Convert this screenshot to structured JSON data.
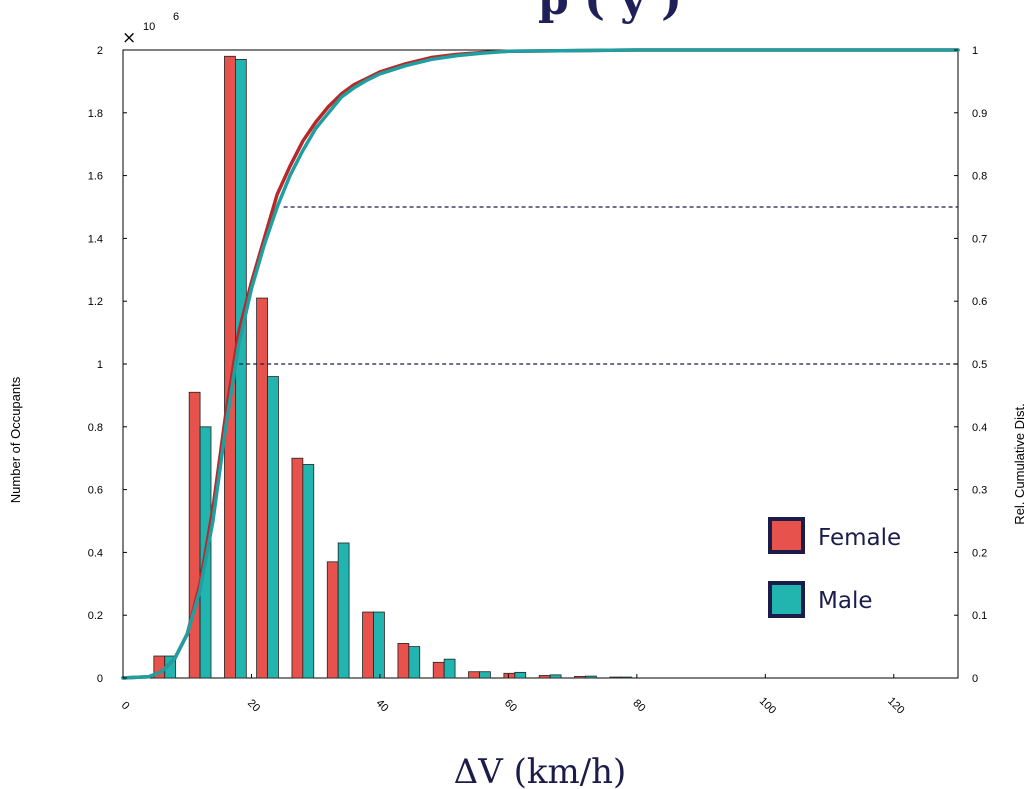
{
  "chart_data": {
    "type": "bar",
    "title_fragment": "p     (        y          )",
    "xlabel": "ΔV (km/h)",
    "ylabel_left": "Number of Occupants",
    "ylabel_right": "Rel. Cumulative Dist.",
    "y_exponent_label": "10",
    "y_exponent_power": "6",
    "x_ticks": [
      "0",
      "20",
      "40",
      "60",
      "80",
      "100",
      "120"
    ],
    "x_tick_values": [
      0,
      20,
      40,
      60,
      80,
      100,
      120
    ],
    "y_left_ticks": [
      "0",
      "0.2",
      "0.4",
      "0.6",
      "0.8",
      "1",
      "1.2",
      "1.4",
      "1.6",
      "1.8",
      "2"
    ],
    "y_left_tick_values": [
      0,
      0.2,
      0.4,
      0.6,
      0.8,
      1,
      1.2,
      1.4,
      1.6,
      1.8,
      2
    ],
    "y_right_ticks": [
      "0",
      "0.1",
      "0.2",
      "0.3",
      "0.4",
      "0.5",
      "0.6",
      "0.7",
      "0.8",
      "0.9",
      "1"
    ],
    "y_right_tick_values": [
      0,
      0.1,
      0.2,
      0.3,
      0.4,
      0.5,
      0.6,
      0.7,
      0.8,
      0.9,
      1
    ],
    "xlim": [
      0,
      130
    ],
    "ylim_left": [
      0,
      2
    ],
    "ylim_right": [
      0,
      1
    ],
    "bin_centers": [
      6.5,
      12,
      17.5,
      22.5,
      28,
      33.5,
      39,
      44.5,
      50,
      55.5,
      61,
      66.5,
      72,
      77.5
    ],
    "series": [
      {
        "name": "Female",
        "color": "#e8524d",
        "values": [
          0.07,
          0.91,
          1.98,
          1.21,
          0.7,
          0.37,
          0.21,
          0.11,
          0.05,
          0.02,
          0.015,
          0.008,
          0.005,
          0.003
        ]
      },
      {
        "name": "Male",
        "color": "#22b5b0",
        "values": [
          0.07,
          0.8,
          1.97,
          0.96,
          0.68,
          0.43,
          0.21,
          0.1,
          0.06,
          0.02,
          0.018,
          0.01,
          0.006,
          0.003
        ]
      }
    ],
    "cumulative": [
      {
        "name": "Female",
        "color": "#b8282a",
        "x": [
          0,
          4,
          6,
          8,
          10,
          12,
          14,
          16,
          18,
          20,
          22,
          24,
          26,
          28,
          30,
          32,
          34,
          36,
          38,
          40,
          44,
          48,
          52,
          56,
          60,
          70,
          80,
          130
        ],
        "y": [
          0,
          0.002,
          0.01,
          0.03,
          0.07,
          0.15,
          0.27,
          0.42,
          0.55,
          0.63,
          0.7,
          0.77,
          0.815,
          0.855,
          0.885,
          0.91,
          0.93,
          0.945,
          0.955,
          0.965,
          0.978,
          0.988,
          0.993,
          0.996,
          0.998,
          0.999,
          1.0,
          1.0
        ]
      },
      {
        "name": "Male",
        "color": "#1f9fa0",
        "x": [
          0,
          4,
          6,
          8,
          10,
          12,
          14,
          16,
          18,
          20,
          22,
          24,
          26,
          28,
          30,
          32,
          34,
          36,
          38,
          40,
          44,
          48,
          52,
          56,
          60,
          70,
          80,
          130
        ],
        "y": [
          0,
          0.002,
          0.01,
          0.03,
          0.07,
          0.14,
          0.25,
          0.4,
          0.53,
          0.62,
          0.69,
          0.75,
          0.8,
          0.84,
          0.875,
          0.9,
          0.925,
          0.94,
          0.952,
          0.962,
          0.975,
          0.985,
          0.991,
          0.995,
          0.998,
          0.999,
          1.0,
          1.0
        ]
      }
    ],
    "reference_lines": [
      {
        "value": 0.5,
        "x_start": 17
      },
      {
        "value": 0.75,
        "x_start": 25
      }
    ],
    "legend": {
      "placement": "right",
      "entries": [
        {
          "label": "Female",
          "color": "#e8524d"
        },
        {
          "label": "Male",
          "color": "#22b5b0"
        }
      ]
    },
    "grid": false
  }
}
